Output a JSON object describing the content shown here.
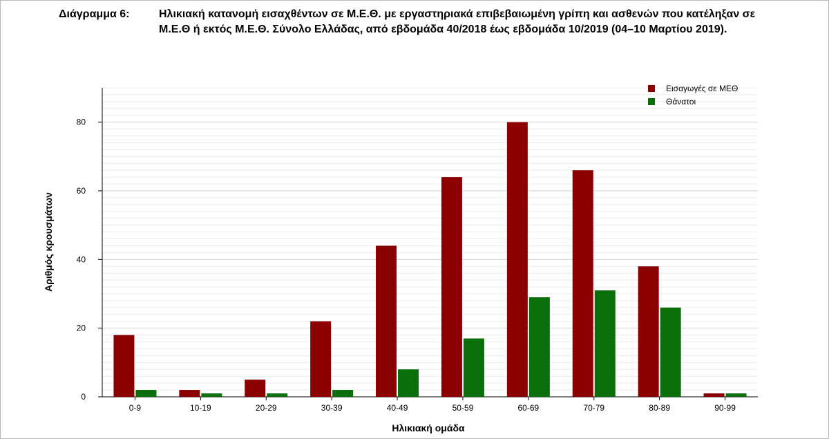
{
  "caption": {
    "label": "Διάγραμμα 6:",
    "title": "Ηλικιακή κατανομή εισαχθέντων σε Μ.Ε.Θ. με εργαστηριακά επιβεβαιωμένη γρίπη και ασθενών που κατέληξαν σε Μ.Ε.Θ ή εκτός Μ.Ε.Θ. Σύνολο Ελλάδας, από εβδομάδα 40/2018 έως εβδομάδα 10/2019 (04–10 Μαρτίου 2019)."
  },
  "chart_data": {
    "type": "bar",
    "xlabel": "Ηλικιακή ομάδα",
    "ylabel": "Αριθμός κρουσμάτων",
    "ylim": [
      0,
      90
    ],
    "yticks": [
      0,
      20,
      40,
      60,
      80
    ],
    "grid": true,
    "legend_position": "top-right",
    "categories": [
      "0-9",
      "10-19",
      "20-29",
      "30-39",
      "40-49",
      "50-59",
      "60-69",
      "70-79",
      "80-89",
      "90-99"
    ],
    "series": [
      {
        "name": "Εισαγωγές σε ΜΕΘ",
        "color": "#8b0000",
        "values": [
          18,
          2,
          5,
          22,
          44,
          64,
          80,
          66,
          38,
          1
        ]
      },
      {
        "name": "Θάνατοι",
        "color": "#0a6e0a",
        "values": [
          2,
          1,
          1,
          2,
          8,
          17,
          29,
          31,
          26,
          1
        ]
      }
    ]
  }
}
